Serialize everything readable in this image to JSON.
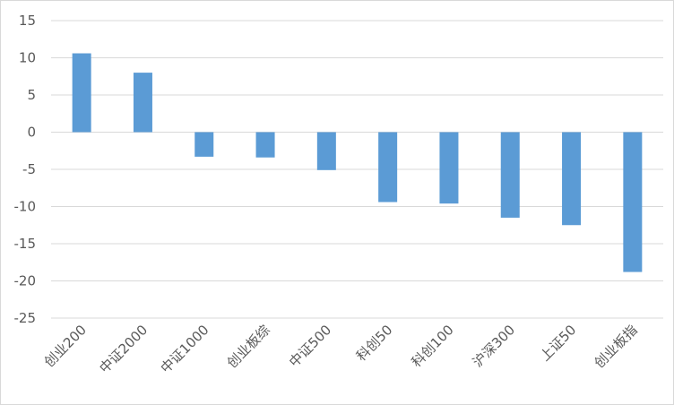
{
  "chart_data": {
    "type": "bar",
    "title": "",
    "xlabel": "",
    "ylabel": "",
    "ylim": [
      -25,
      15
    ],
    "yticks": [
      15,
      10,
      5,
      0,
      -5,
      -10,
      -15,
      -20,
      -25
    ],
    "grid": true,
    "legend": "none",
    "bar_color": "#5b9bd5",
    "categories": [
      "创业200",
      "中证2000",
      "中证1000",
      "创业板综",
      "中证500",
      "科创50",
      "科创100",
      "沪深300",
      "上证50",
      "创业板指"
    ],
    "values": [
      10.6,
      8.0,
      -3.3,
      -3.4,
      -5.1,
      -9.4,
      -9.6,
      -11.5,
      -12.5,
      -18.8
    ]
  }
}
